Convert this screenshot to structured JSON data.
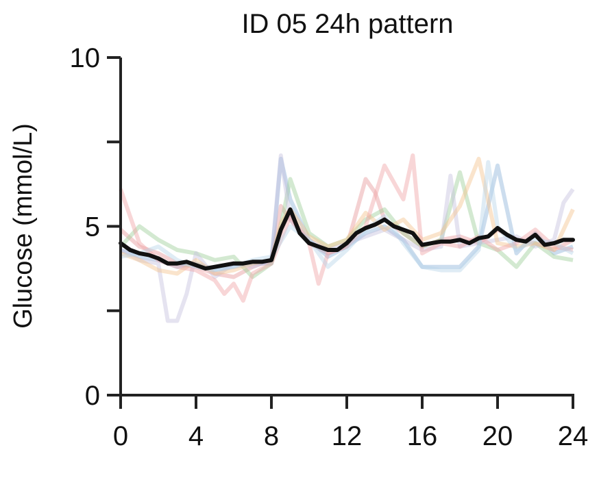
{
  "chart_data": {
    "type": "line",
    "title": "ID 05 24h pattern",
    "xlabel": "",
    "ylabel": "Glucose (mmol/L)",
    "xlim": [
      0,
      24
    ],
    "ylim": [
      0,
      10
    ],
    "xticks": [
      0,
      4,
      8,
      12,
      16,
      20,
      24
    ],
    "xtick_labels": [
      "0",
      "4",
      "8",
      "12",
      "16",
      "20",
      "24"
    ],
    "yticks": [
      0,
      2.5,
      5,
      7.5,
      10
    ],
    "ytick_labels": [
      "0",
      "",
      "5",
      "",
      "10"
    ],
    "grid": false,
    "legend": "none",
    "mean_series": {
      "color": "#111111",
      "x": [
        0,
        0.5,
        1,
        1.5,
        2,
        2.5,
        3,
        3.5,
        4,
        4.5,
        5,
        5.5,
        6,
        6.5,
        7,
        7.5,
        8,
        8.5,
        9,
        9.5,
        10,
        10.5,
        11,
        11.5,
        12,
        12.5,
        13,
        13.5,
        14,
        14.5,
        15,
        15.5,
        16,
        16.5,
        17,
        17.5,
        18,
        18.5,
        19,
        19.5,
        20,
        20.5,
        21,
        21.5,
        22,
        22.5,
        23,
        23.5,
        24
      ],
      "y": [
        4.5,
        4.3,
        4.2,
        4.15,
        4.05,
        3.9,
        3.9,
        3.95,
        3.85,
        3.75,
        3.8,
        3.85,
        3.9,
        3.9,
        3.95,
        3.95,
        4.0,
        4.9,
        5.5,
        4.8,
        4.5,
        4.4,
        4.3,
        4.3,
        4.5,
        4.8,
        4.95,
        5.05,
        5.2,
        5.0,
        4.9,
        4.8,
        4.45,
        4.5,
        4.55,
        4.55,
        4.6,
        4.5,
        4.65,
        4.7,
        4.95,
        4.75,
        4.6,
        4.55,
        4.75,
        4.45,
        4.5,
        4.6,
        4.6
      ]
    },
    "series": [
      {
        "color": "#e7989b",
        "x": [
          0,
          1,
          2,
          3,
          4,
          5,
          6,
          7,
          8,
          8.5,
          9,
          10,
          11,
          12,
          13,
          13.5,
          14,
          15,
          16,
          17,
          18,
          19,
          20,
          21,
          22,
          23,
          24
        ],
        "y": [
          4.9,
          4.4,
          4.2,
          3.9,
          3.8,
          3.6,
          3.5,
          3.8,
          4.0,
          5.6,
          5.2,
          4.5,
          4.2,
          4.4,
          6.4,
          6.0,
          5.2,
          4.8,
          4.4,
          4.6,
          4.7,
          4.5,
          4.9,
          4.6,
          4.5,
          4.3,
          4.6
        ]
      },
      {
        "color": "#8fb3d9",
        "x": [
          0,
          1,
          2,
          3,
          4,
          5,
          6,
          7,
          8,
          8.5,
          9,
          10,
          11,
          12,
          13,
          14,
          15,
          16,
          17,
          18,
          19,
          20,
          21,
          22,
          23,
          24
        ],
        "y": [
          4.3,
          4.1,
          4.0,
          3.8,
          3.9,
          3.7,
          3.8,
          3.9,
          3.9,
          7.0,
          5.8,
          4.6,
          4.1,
          4.4,
          4.8,
          5.0,
          4.6,
          3.8,
          3.8,
          3.8,
          4.4,
          6.8,
          4.2,
          4.8,
          4.2,
          4.4
        ]
      },
      {
        "color": "#9ecf9a",
        "x": [
          0,
          1,
          2,
          3,
          4,
          5,
          6,
          7,
          8,
          8.5,
          9,
          10,
          11,
          12,
          13,
          14,
          15,
          16,
          17,
          18,
          19,
          20,
          21,
          22,
          23,
          24
        ],
        "y": [
          4.4,
          5.0,
          4.6,
          4.3,
          4.2,
          4.0,
          4.1,
          3.5,
          3.9,
          5.0,
          6.4,
          4.8,
          4.4,
          4.6,
          5.2,
          5.5,
          4.8,
          4.4,
          4.6,
          6.6,
          4.5,
          4.3,
          3.8,
          4.5,
          4.1,
          4.0
        ]
      },
      {
        "color": "#c6c2dd",
        "x": [
          0,
          1,
          2,
          2.5,
          3,
          3.5,
          4,
          5,
          6,
          7,
          8,
          8.5,
          9,
          10,
          11,
          12,
          13,
          14,
          15,
          16,
          17,
          17.5,
          18,
          19,
          20,
          21,
          22,
          23,
          23.5,
          24
        ],
        "y": [
          4.3,
          4.0,
          3.9,
          2.2,
          2.2,
          3.0,
          4.2,
          3.5,
          3.9,
          3.8,
          4.0,
          7.1,
          5.2,
          4.6,
          4.3,
          4.5,
          4.7,
          4.9,
          4.6,
          4.3,
          4.4,
          6.5,
          4.4,
          4.5,
          4.6,
          4.7,
          4.4,
          4.6,
          5.7,
          6.1
        ]
      },
      {
        "color": "#f5c48f",
        "x": [
          0,
          1,
          2,
          3,
          4,
          5,
          6,
          7,
          8,
          8.5,
          9,
          10,
          11,
          12,
          13,
          14,
          15,
          16,
          17,
          18,
          19,
          20,
          21,
          22,
          23,
          24
        ],
        "y": [
          4.2,
          4.0,
          3.7,
          3.6,
          4.0,
          3.6,
          3.7,
          3.9,
          4.0,
          5.1,
          5.5,
          4.7,
          4.4,
          4.6,
          5.4,
          4.9,
          5.2,
          4.6,
          4.8,
          5.6,
          7.0,
          4.5,
          4.4,
          4.5,
          4.3,
          5.5
        ]
      },
      {
        "color": "#f0a4a6",
        "x": [
          0,
          1,
          2,
          3,
          4,
          5,
          5.5,
          6,
          6.5,
          7,
          8,
          9,
          10,
          10.5,
          11,
          12,
          13,
          14,
          15,
          15.5,
          16,
          17,
          18,
          19,
          20,
          21,
          22,
          23,
          24
        ],
        "y": [
          6.1,
          4.5,
          4.0,
          3.8,
          3.7,
          3.4,
          3.0,
          3.3,
          2.8,
          3.6,
          3.9,
          5.3,
          4.5,
          3.3,
          4.2,
          4.4,
          5.0,
          6.8,
          5.8,
          7.1,
          4.2,
          4.5,
          4.4,
          4.7,
          4.3,
          4.5,
          4.9,
          4.4,
          4.3
        ]
      },
      {
        "color": "#b8d4e8",
        "x": [
          0,
          1,
          2,
          3,
          4,
          5,
          6,
          7,
          8,
          9,
          10,
          11,
          12,
          13,
          14,
          15,
          16,
          17,
          18,
          19,
          19.5,
          20,
          21,
          22,
          23,
          24
        ],
        "y": [
          4.1,
          4.2,
          4.4,
          4.0,
          3.8,
          3.7,
          3.8,
          4.0,
          4.1,
          5.0,
          4.6,
          3.8,
          4.3,
          4.9,
          5.3,
          4.5,
          3.8,
          3.7,
          3.7,
          4.3,
          6.9,
          5.0,
          4.3,
          4.6,
          4.5,
          4.2
        ]
      }
    ]
  }
}
